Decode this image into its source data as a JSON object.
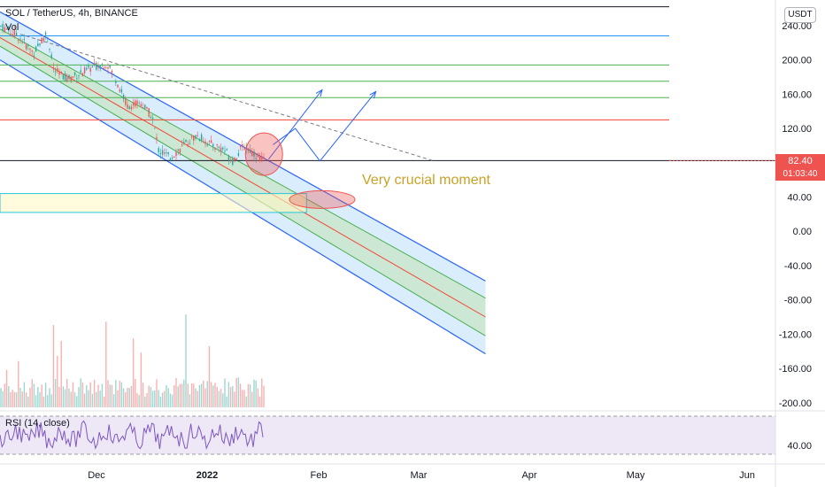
{
  "header": {
    "symbol_line": "SOL / TetherUS, 4h, BINANCE",
    "vol_label": "Vol",
    "currency": "USDT",
    "rsi_label": "RSI (14, close)"
  },
  "price_tag": {
    "price": "82.40",
    "countdown": "01:03:40",
    "color": "#ef5350"
  },
  "annotation": {
    "text": "Very crucial moment",
    "color": "#c9a227"
  },
  "colors": {
    "channel_outer": "#2962ff",
    "channel_fill": "#bbdefb",
    "channel_inner_fill": "#c8e6c9",
    "channel_inner_line": "#4caf50",
    "midline": "#f44336",
    "rsi_line": "#7e57c2",
    "rsi_bg": "#ede7f6",
    "up": "#26a69a",
    "down": "#ef5350"
  },
  "chart_data": {
    "type": "line",
    "title": "SOL / TetherUS, 4h, BINANCE",
    "y_axis": {
      "ticks": [
        "240.00",
        "200.00",
        "160.00",
        "120.00",
        "80.00",
        "40.00",
        "0.00",
        "-40.00",
        "-80.00",
        "-120.00",
        "-160.00",
        "-200.00"
      ],
      "tick_values": [
        240,
        200,
        160,
        120,
        80,
        40,
        0,
        -40,
        -80,
        -120,
        -160,
        -200
      ],
      "range": [
        -200,
        240
      ]
    },
    "x_axis": {
      "ticks": [
        "Dec",
        "2022",
        "Feb",
        "Mar",
        "Apr",
        "May",
        "Jun"
      ]
    },
    "series": [
      {
        "values": [
          {
            "date": "2021-11-12",
            "price": 240
          },
          {
            "date": "2021-11-20",
            "price": 228
          },
          {
            "date": "2021-11-27",
            "price": 208
          },
          {
            "date": "2021-12-03",
            "price": 232
          },
          {
            "date": "2021-12-06",
            "price": 188
          },
          {
            "date": "2021-12-12",
            "price": 178
          },
          {
            "date": "2021-12-18",
            "price": 184
          },
          {
            "date": "2021-12-24",
            "price": 192
          },
          {
            "date": "2021-12-30",
            "price": 196
          },
          {
            "date": "2022-01-03",
            "price": 176
          },
          {
            "date": "2022-01-08",
            "price": 146
          },
          {
            "date": "2022-01-14",
            "price": 150
          },
          {
            "date": "2022-01-19",
            "price": 134
          },
          {
            "date": "2022-01-22",
            "price": 94
          },
          {
            "date": "2022-01-27",
            "price": 86
          },
          {
            "date": "2022-02-03",
            "price": 102
          },
          {
            "date": "2022-02-08",
            "price": 112
          },
          {
            "date": "2022-02-14",
            "price": 102
          },
          {
            "date": "2022-02-20",
            "price": 96
          },
          {
            "date": "2022-02-24",
            "price": 82
          },
          {
            "date": "2022-03-01",
            "price": 100
          },
          {
            "date": "2022-03-06",
            "price": 90
          },
          {
            "date": "2022-03-10",
            "price": 82.4
          }
        ]
      }
    ],
    "horizontal_levels": [
      {
        "value": 262,
        "color": "#131722"
      },
      {
        "value": 228,
        "color": "#2196f3"
      },
      {
        "value": 194,
        "color": "#4caf50"
      },
      {
        "value": 175,
        "color": "#4caf50"
      },
      {
        "value": 156,
        "color": "#4caf50"
      },
      {
        "value": 130,
        "color": "#f44336"
      },
      {
        "value": 82.4,
        "color": "#131722"
      }
    ],
    "support_zone": {
      "from": 22,
      "to": 44,
      "end_date": "2022-03-29"
    },
    "descending_channel": {
      "upper_line": [
        {
          "date": "2021-11-12",
          "price": 256
        },
        {
          "date": "2022-06-17",
          "price": -58
        }
      ],
      "inner_upper": [
        {
          "date": "2021-11-12",
          "price": 236
        },
        {
          "date": "2022-06-17",
          "price": -78
        }
      ],
      "midline": [
        {
          "date": "2021-11-12",
          "price": 226
        },
        {
          "date": "2022-06-17",
          "price": -100
        }
      ],
      "inner_lower": [
        {
          "date": "2021-11-12",
          "price": 216
        },
        {
          "date": "2022-06-17",
          "price": -122
        }
      ],
      "lower_line": [
        {
          "date": "2021-11-12",
          "price": 200
        },
        {
          "date": "2022-06-17",
          "price": -143
        }
      ]
    },
    "trendline_dashed": [
      {
        "date": "2021-11-21",
        "price": 230
      },
      {
        "date": "2022-05-25",
        "price": 82
      }
    ],
    "projection_arrows": [
      [
        {
          "date": "2022-03-12",
          "price": 84
        },
        {
          "date": "2022-04-05",
          "price": 165
        }
      ],
      [
        {
          "date": "2022-03-14",
          "price": 101
        },
        {
          "date": "2022-03-24",
          "price": 120
        },
        {
          "date": "2022-04-04",
          "price": 82
        },
        {
          "date": "2022-04-29",
          "price": 163
        }
      ]
    ],
    "highlight_ellipses": [
      {
        "date": "2022-03-10",
        "price": 90
      },
      {
        "date": "2022-04-05",
        "price": 37
      }
    ],
    "rsi": {
      "label": "RSI (14, close)",
      "tick": "40.00",
      "upper_band": 70,
      "lower_band": 30,
      "last": 36
    },
    "grid": false
  }
}
